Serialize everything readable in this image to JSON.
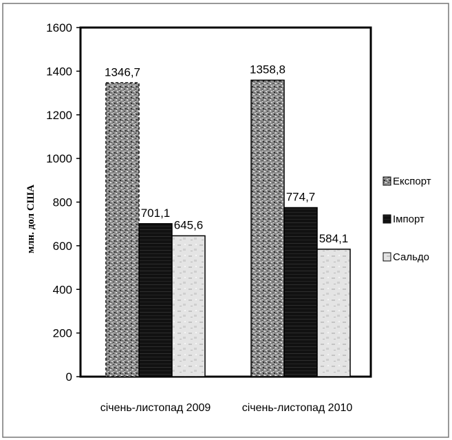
{
  "chart_data": {
    "type": "bar",
    "title": "",
    "xlabel": "",
    "ylabel": "млн. дол США",
    "ylim": [
      0,
      1600
    ],
    "yticks": [
      0,
      200,
      400,
      600,
      800,
      1000,
      1200,
      1400,
      1600
    ],
    "grid": false,
    "legend_position": "right",
    "categories": [
      "січень-листопад 2009",
      "січень-листопад 2010"
    ],
    "series": [
      {
        "name": "Експорт",
        "values": [
          1346.7,
          1358.8
        ],
        "labels": [
          "1346,7",
          "1358,8"
        ],
        "color": "#8a8a8a"
      },
      {
        "name": "Імпорт",
        "values": [
          701.1,
          774.7
        ],
        "labels": [
          "701,1",
          "774,7"
        ],
        "color": "#151515"
      },
      {
        "name": "Сальдо",
        "values": [
          645.6,
          584.1
        ],
        "labels": [
          "645,6",
          "584,1"
        ],
        "color": "#e2e2e2"
      }
    ]
  }
}
